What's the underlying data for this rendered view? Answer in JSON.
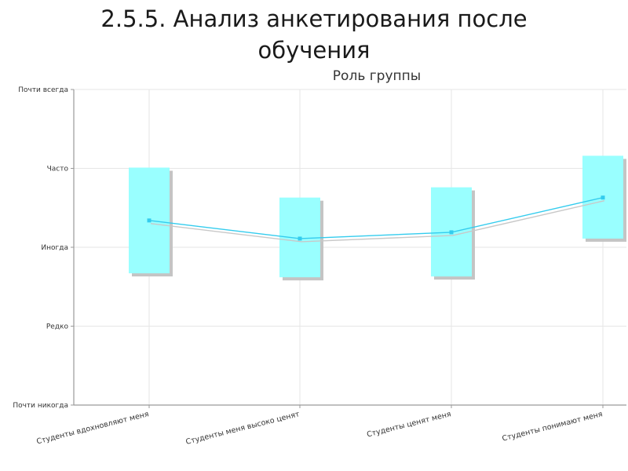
{
  "slide": {
    "title_line1": "2.5.5. Анализ анкетирования после",
    "title_line2": "обучения"
  },
  "chart_data": {
    "type": "line",
    "title": "Роль группы",
    "xlabel": "",
    "ylabel": "",
    "ylim": [
      0,
      4
    ],
    "y_ticks": [
      {
        "value": 0,
        "label": "Почти никогда"
      },
      {
        "value": 1,
        "label": "Редко"
      },
      {
        "value": 2,
        "label": "Иногда"
      },
      {
        "value": 3,
        "label": "Часто"
      },
      {
        "value": 4,
        "label": "Почти всегда"
      }
    ],
    "categories": [
      "Студенты вдохновляют меня",
      "Студенты меня высоко ценят",
      "Студенты ценят меня",
      "Студенты понимают меня"
    ],
    "series": [
      {
        "values": [
          2.34,
          2.11,
          2.19,
          2.63
        ],
        "box_low": [
          1.67,
          1.62,
          1.63,
          2.11
        ],
        "box_high": [
          3.01,
          2.63,
          2.76,
          3.16
        ]
      }
    ],
    "grid": true,
    "colors": {
      "box_fill": "#99ffff",
      "box_shadow": "#c4c4c4",
      "line": "#33ccee",
      "grid": "#e6e6e6",
      "axis": "#9a9a9a",
      "text": "#333333"
    }
  }
}
